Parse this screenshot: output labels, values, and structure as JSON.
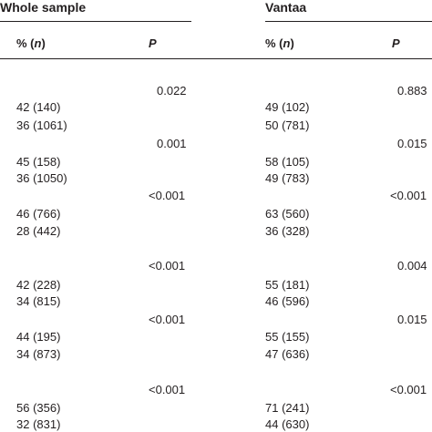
{
  "groups": [
    {
      "title": "Whole sample",
      "col_pct": "% (",
      "col_n": "n",
      "col_pct_close": ")",
      "col_p": "P"
    },
    {
      "title": "Vantaa",
      "col_pct": "% (",
      "col_n": "n",
      "col_pct_close": ")",
      "col_p": "P"
    }
  ],
  "blocks": [
    {
      "whole_p": "0.022",
      "vantaa_p": "0.883",
      "rows": [
        {
          "whole": "42 (140)",
          "vantaa": "49 (102)"
        },
        {
          "whole": "36 (1061)",
          "vantaa": "50 (781)"
        }
      ]
    },
    {
      "whole_p": "0.001",
      "vantaa_p": "0.015",
      "rows": [
        {
          "whole": "45 (158)",
          "vantaa": "58 (105)"
        },
        {
          "whole": "36 (1050)",
          "vantaa": "49 (783)"
        }
      ]
    },
    {
      "whole_p": "<0.001",
      "vantaa_p": "<0.001",
      "rows": [
        {
          "whole": "46 (766)",
          "vantaa": "63 (560)"
        },
        {
          "whole": "28 (442)",
          "vantaa": "36 (328)"
        }
      ]
    },
    {
      "whole_p": "<0.001",
      "vantaa_p": "0.004",
      "rows": [
        {
          "whole": "42 (228)",
          "vantaa": "55 (181)"
        },
        {
          "whole": "34 (815)",
          "vantaa": "46 (596)"
        }
      ]
    },
    {
      "whole_p": "<0.001",
      "vantaa_p": "0.015",
      "rows": [
        {
          "whole": "44 (195)",
          "vantaa": "55 (155)"
        },
        {
          "whole": "34 (873)",
          "vantaa": "47 (636)"
        }
      ]
    },
    {
      "whole_p": "<0.001",
      "vantaa_p": "<0.001",
      "rows": [
        {
          "whole": "56 (356)",
          "vantaa": "71 (241)"
        },
        {
          "whole": "32 (831)",
          "vantaa": "44 (630)"
        }
      ]
    }
  ]
}
